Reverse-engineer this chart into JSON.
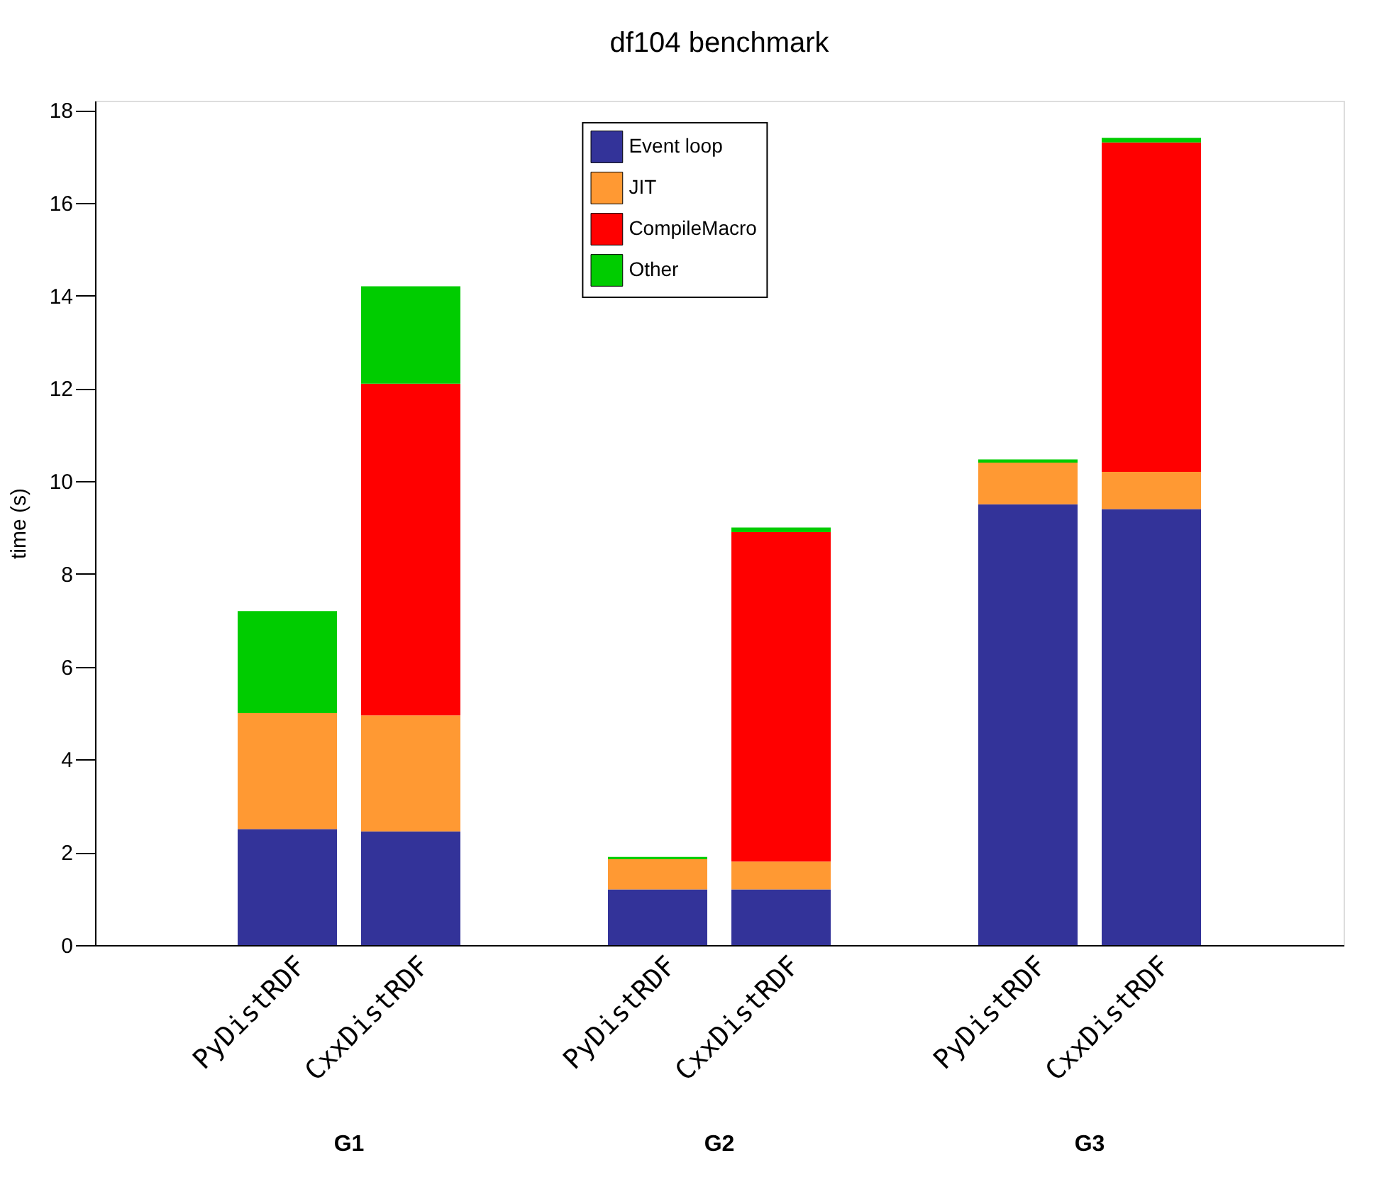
{
  "chart_data": {
    "type": "bar",
    "title": "df104 benchmark",
    "ylabel": "time (s)",
    "stacked": true,
    "categories": [
      "PyDistRDF",
      "CxxDistRDF",
      "PyDistRDF",
      "CxxDistRDF",
      "PyDistRDF",
      "CxxDistRDF"
    ],
    "series": [
      {
        "name": "Event loop",
        "color": "#333399",
        "values": [
          2.5,
          2.45,
          1.2,
          1.2,
          9.5,
          9.4
        ]
      },
      {
        "name": "JIT",
        "color": "#ff9933",
        "values": [
          2.5,
          2.5,
          0.65,
          0.6,
          0.9,
          0.8
        ]
      },
      {
        "name": "CompileMacro",
        "color": "#ff0000",
        "values": [
          0,
          7.15,
          0,
          7.1,
          0,
          7.1
        ]
      },
      {
        "name": "Other",
        "color": "#00cc00",
        "values": [
          2.2,
          2.1,
          0.05,
          0.1,
          0.07,
          0.1
        ]
      }
    ],
    "annotations": [
      "G1",
      "G2",
      "G3"
    ],
    "ylim": [
      0,
      18.2
    ],
    "yticks": [
      0,
      2,
      4,
      6,
      8,
      10,
      12,
      14,
      16,
      18
    ],
    "grid": false,
    "legend": "top"
  }
}
